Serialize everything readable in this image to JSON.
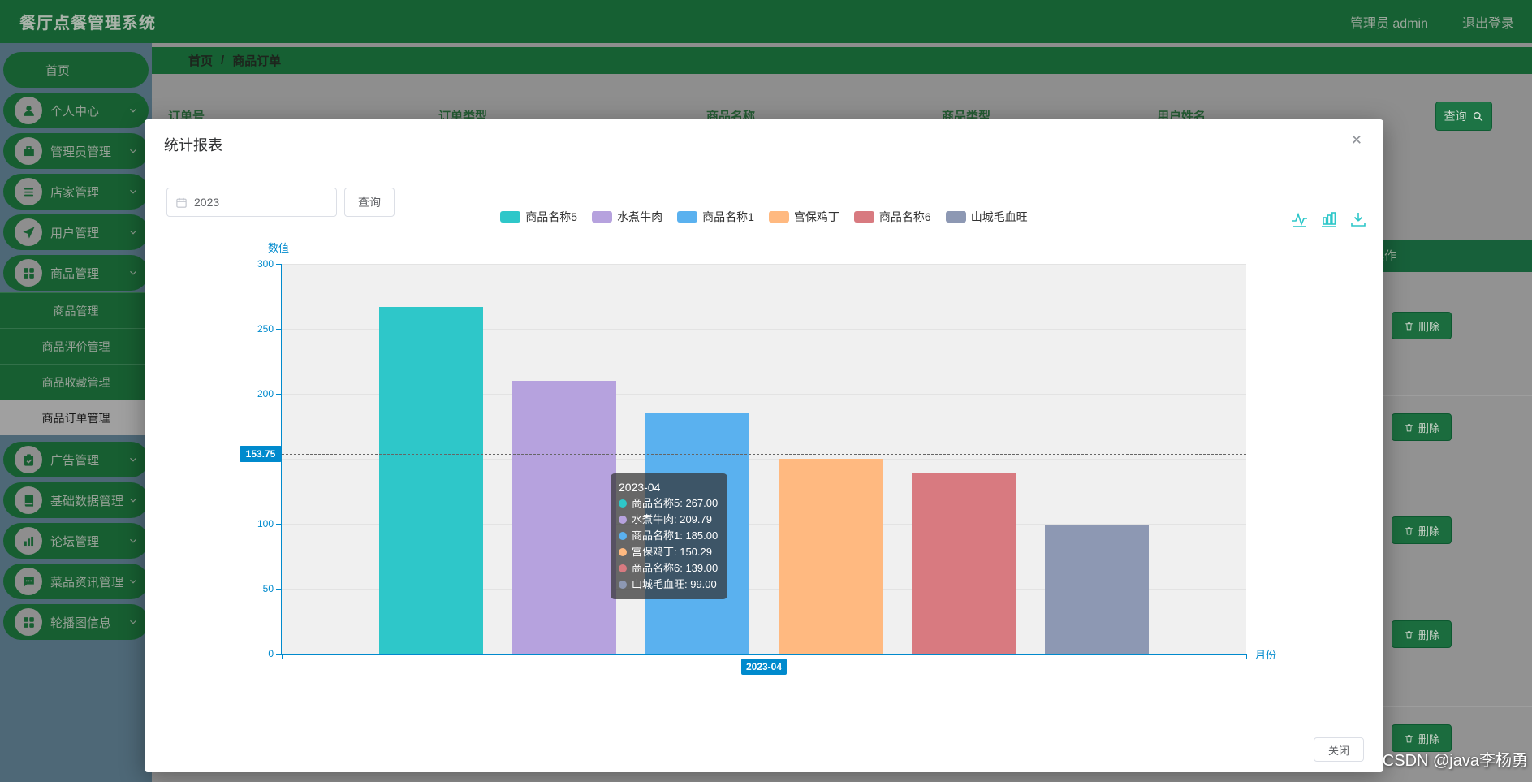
{
  "app": {
    "title": "餐厅点餐管理系统",
    "user_role_label": "管理员 admin",
    "logout_label": "退出登录"
  },
  "breadcrumb": {
    "items": [
      "首页",
      "商品订单"
    ],
    "separator": "/"
  },
  "sidebar": {
    "items": [
      {
        "label": "首页",
        "icon": null,
        "has_children": false
      },
      {
        "label": "个人中心",
        "icon": "user-icon",
        "has_children": true
      },
      {
        "label": "管理员管理",
        "icon": "briefcase-icon",
        "has_children": true
      },
      {
        "label": "店家管理",
        "icon": "list-icon",
        "has_children": true
      },
      {
        "label": "用户管理",
        "icon": "send-icon",
        "has_children": true
      },
      {
        "label": "商品管理",
        "icon": "grid-icon",
        "has_children": true,
        "expanded": true,
        "children": [
          {
            "label": "商品管理",
            "active": false
          },
          {
            "label": "商品评价管理",
            "active": false
          },
          {
            "label": "商品收藏管理",
            "active": false
          },
          {
            "label": "商品订单管理",
            "active": true
          }
        ]
      },
      {
        "label": "广告管理",
        "icon": "clipboard-icon",
        "has_children": true
      },
      {
        "label": "基础数据管理",
        "icon": "book-icon",
        "has_children": true
      },
      {
        "label": "论坛管理",
        "icon": "chart-icon",
        "has_children": true
      },
      {
        "label": "菜品资讯管理",
        "icon": "chat-icon",
        "has_children": true
      },
      {
        "label": "轮播图信息",
        "icon": "grid-icon",
        "has_children": true
      }
    ]
  },
  "background_page": {
    "filter_labels": [
      "订单号",
      "订单类型",
      "商品名称",
      "商品类型",
      "用户姓名"
    ],
    "search_button_label": "查询",
    "table_header_label": "操作",
    "delete_button_label": "删除",
    "delete_row_count": 5
  },
  "modal": {
    "title": "统计报表",
    "close_glyph": "✕",
    "year_input": {
      "value": "2023",
      "icon": "calendar-icon"
    },
    "query_button_label": "查询",
    "footer_close_label": "关闭",
    "toolbox_icons": [
      "line-chart-icon",
      "bar-chart-icon",
      "download-icon"
    ]
  },
  "chart_data": {
    "type": "bar",
    "categories": [
      "2023-04"
    ],
    "series": [
      {
        "name": "商品名称5",
        "color": "#2ec7c9",
        "values": [
          267.0
        ]
      },
      {
        "name": "水煮牛肉",
        "color": "#b6a2de",
        "values": [
          209.79
        ]
      },
      {
        "name": "商品名称1",
        "color": "#5ab1ef",
        "values": [
          185.0
        ]
      },
      {
        "name": "宫保鸡丁",
        "color": "#ffb980",
        "values": [
          150.29
        ]
      },
      {
        "name": "商品名称6",
        "color": "#d87a80",
        "values": [
          139.0
        ]
      },
      {
        "name": "山城毛血旺",
        "color": "#8d98b3",
        "values": [
          99.0
        ]
      }
    ],
    "xlabel": "月份",
    "ylabel": "数值",
    "ylim": [
      0,
      300
    ],
    "ytick_step": 50,
    "grid": true,
    "legend_position": "top",
    "axis_color": "#008acd",
    "axis_pointer": {
      "y_value": 153.75,
      "y_label": "153.75",
      "x_label": "2023-04"
    },
    "tooltip": {
      "title": "2023-04",
      "rows": [
        {
          "name": "商品名称5",
          "value": "267.00"
        },
        {
          "name": "水煮牛肉",
          "value": "209.79"
        },
        {
          "name": "商品名称1",
          "value": "185.00"
        },
        {
          "name": "宫保鸡丁",
          "value": "150.29"
        },
        {
          "name": "商品名称6",
          "value": "139.00"
        },
        {
          "name": "山城毛血旺",
          "value": "99.00"
        }
      ]
    }
  },
  "watermark": "CSDN @java李杨勇"
}
